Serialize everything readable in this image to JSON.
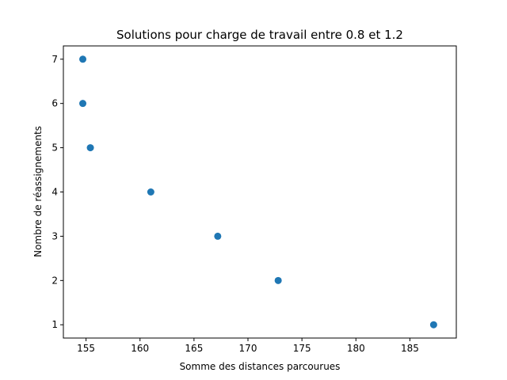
{
  "chart_data": {
    "type": "scatter",
    "title": "Solutions pour charge de travail entre 0.8 et 1.2",
    "xlabel": "Somme des distances parcourues",
    "ylabel": "Nombre de réassignements",
    "xlim": [
      152.9,
      189.3
    ],
    "ylim": [
      0.7,
      7.3
    ],
    "xticks": [
      155,
      160,
      165,
      170,
      175,
      180,
      185
    ],
    "yticks": [
      1,
      2,
      3,
      4,
      5,
      6,
      7
    ],
    "grid": false,
    "marker_color": "#1f77b4",
    "points": [
      {
        "x": 154.7,
        "y": 7
      },
      {
        "x": 154.7,
        "y": 6
      },
      {
        "x": 155.4,
        "y": 5
      },
      {
        "x": 161.0,
        "y": 4
      },
      {
        "x": 167.2,
        "y": 3
      },
      {
        "x": 172.8,
        "y": 2
      },
      {
        "x": 187.2,
        "y": 1
      }
    ]
  }
}
